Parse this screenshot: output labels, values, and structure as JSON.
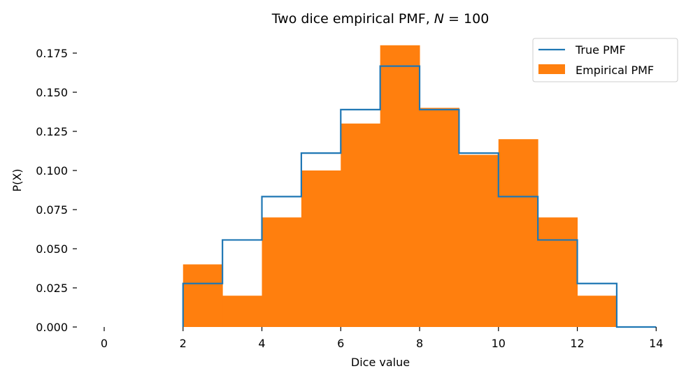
{
  "chart_data": {
    "type": "bar",
    "title": "Two dice empirical PMF, N = 100",
    "title_prefix": "Two dice empirical PMF, ",
    "title_var": "N",
    "title_eq": " = 100",
    "xlabel": "Dice value",
    "ylabel": "P(X)",
    "xlim": [
      -0.5,
      14
    ],
    "ylim": [
      0,
      0.18
    ],
    "xticks": [
      0,
      2,
      4,
      6,
      8,
      10,
      12,
      14
    ],
    "xtick_labels": [
      "0",
      "2",
      "4",
      "6",
      "8",
      "10",
      "12",
      "14"
    ],
    "yticks": [
      0,
      0.025,
      0.05,
      0.075,
      0.1,
      0.125,
      0.15,
      0.175
    ],
    "ytick_labels": [
      "0.000",
      "0.025",
      "0.050",
      "0.075",
      "0.100",
      "0.125",
      "0.150",
      "0.175"
    ],
    "grid": false,
    "legend_position": "top-right",
    "series": [
      {
        "name": "True PMF",
        "type": "step",
        "color": "#1f77b4",
        "x": [
          2,
          3,
          4,
          5,
          6,
          7,
          8,
          9,
          10,
          11,
          12,
          13,
          14
        ],
        "values": [
          0.0278,
          0.0556,
          0.0833,
          0.1111,
          0.1389,
          0.1667,
          0.1389,
          0.1111,
          0.0833,
          0.0556,
          0.0278,
          0.0,
          0.0
        ]
      },
      {
        "name": "Empirical PMF",
        "type": "bar",
        "color": "#ff7f0e",
        "bin_edges": [
          2,
          3,
          4,
          5,
          6,
          7,
          8,
          9,
          10,
          11,
          12,
          13
        ],
        "values": [
          0.04,
          0.02,
          0.07,
          0.1,
          0.13,
          0.18,
          0.14,
          0.11,
          0.12,
          0.07,
          0.02
        ]
      }
    ]
  }
}
